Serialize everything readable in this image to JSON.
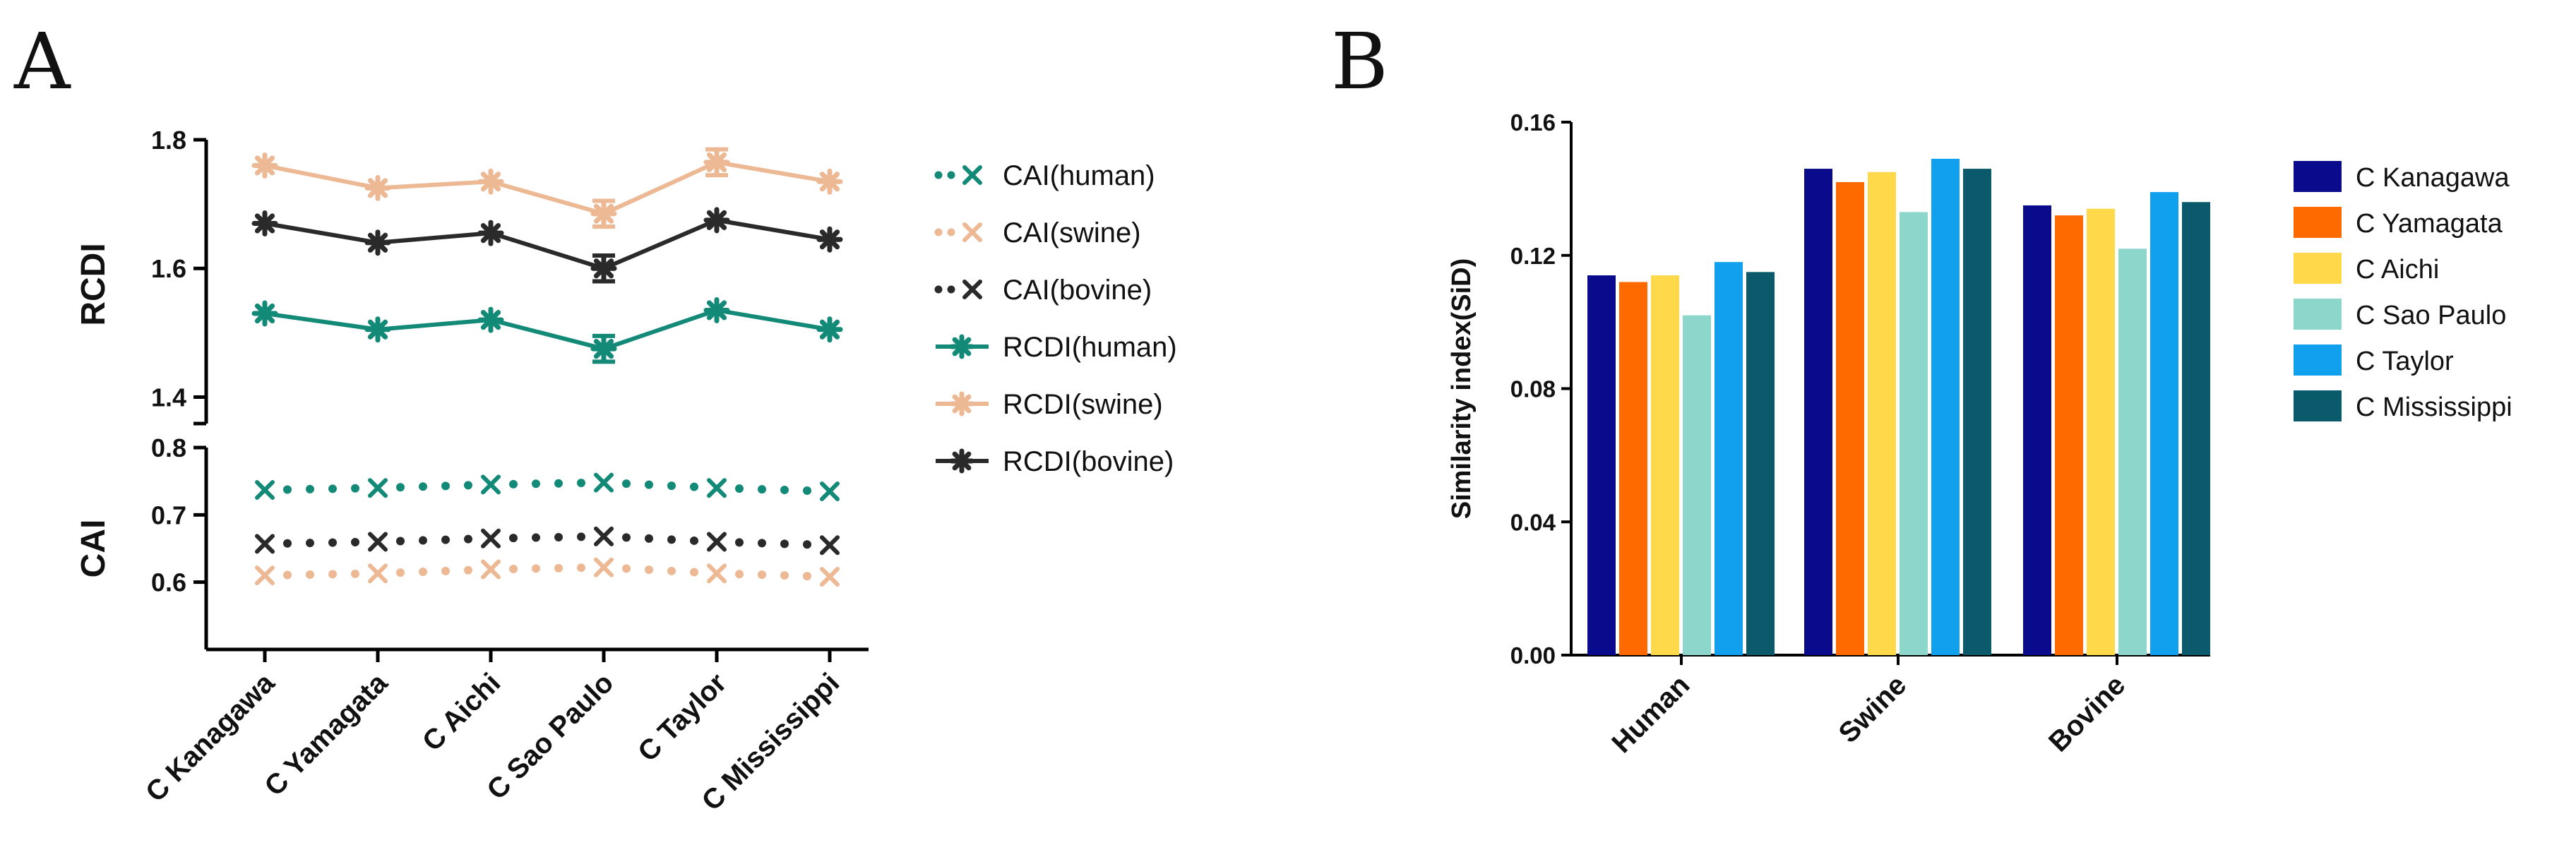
{
  "chart_data": [
    {
      "panel": "A",
      "type": "line",
      "categories": [
        "C Kanagawa",
        "C Yamagata",
        "C Aichi",
        "C Sao Paulo",
        "C Taylor",
        "C Mississippi"
      ],
      "series": [
        {
          "name": "CAI(human)",
          "axis": "CAI",
          "style": "dotted",
          "marker": "x",
          "color": "#138a78",
          "values": [
            0.737,
            0.74,
            0.745,
            0.748,
            0.74,
            0.735
          ]
        },
        {
          "name": "CAI(swine)",
          "axis": "CAI",
          "style": "dotted",
          "marker": "x",
          "color": "#edb994",
          "values": [
            0.61,
            0.613,
            0.619,
            0.622,
            0.613,
            0.608
          ]
        },
        {
          "name": "CAI(bovine)",
          "axis": "CAI",
          "style": "dotted",
          "marker": "x",
          "color": "#2a2a2a",
          "values": [
            0.657,
            0.66,
            0.665,
            0.668,
            0.66,
            0.655
          ]
        },
        {
          "name": "RCDI(human)",
          "axis": "RCDI",
          "style": "solid",
          "marker": "star",
          "color": "#138a78",
          "values": [
            1.53,
            1.505,
            1.52,
            1.475,
            1.535,
            1.505
          ]
        },
        {
          "name": "RCDI(swine)",
          "axis": "RCDI",
          "style": "solid",
          "marker": "star",
          "color": "#edb994",
          "values": [
            1.76,
            1.725,
            1.735,
            1.685,
            1.765,
            1.735
          ]
        },
        {
          "name": "RCDI(bovine)",
          "axis": "RCDI",
          "style": "solid",
          "marker": "star",
          "color": "#2a2a2a",
          "values": [
            1.67,
            1.64,
            1.655,
            1.6,
            1.675,
            1.645
          ]
        }
      ],
      "errors": {
        "RCDI(human)": [
          0,
          0,
          0,
          0.02,
          0,
          0
        ],
        "RCDI(swine)": [
          0,
          0,
          0,
          0.02,
          0.02,
          0
        ],
        "RCDI(bovine)": [
          0,
          0,
          0,
          0.02,
          0,
          0
        ]
      },
      "axes": [
        {
          "label": "RCDI",
          "ylim": [
            1.35,
            1.8
          ],
          "ticks": [
            "1.4",
            "1.6",
            "1.8"
          ]
        },
        {
          "label": "CAI",
          "ylim": [
            0.5,
            0.8
          ],
          "ticks": [
            "0.6",
            "0.7",
            "0.8"
          ]
        }
      ],
      "legend_position": "right"
    },
    {
      "panel": "B",
      "type": "bar",
      "categories": [
        "Human",
        "Swine",
        "Bovine"
      ],
      "ylabel": "Similarity index(SiD)",
      "ylim": [
        0,
        0.16
      ],
      "yticks": [
        "0.00",
        "0.04",
        "0.08",
        "0.12",
        "0.16"
      ],
      "series": [
        {
          "name": "C Kanagawa",
          "color": "#0a0a8c",
          "values": [
            0.114,
            0.146,
            0.135
          ]
        },
        {
          "name": "C Yamagata",
          "color": "#ff6a00",
          "values": [
            0.112,
            0.142,
            0.132
          ]
        },
        {
          "name": "C Aichi",
          "color": "#ffd94a",
          "values": [
            0.114,
            0.145,
            0.134
          ]
        },
        {
          "name": "C Sao Paulo",
          "color": "#8cd6cc",
          "values": [
            0.102,
            0.133,
            0.122
          ]
        },
        {
          "name": "C Taylor",
          "color": "#11a0ee",
          "values": [
            0.118,
            0.149,
            0.139
          ]
        },
        {
          "name": "C Mississippi",
          "color": "#0b5a6c",
          "values": [
            0.115,
            0.146,
            0.136
          ]
        }
      ],
      "legend_position": "right"
    }
  ],
  "panels": {
    "a": "A",
    "b": "B"
  }
}
